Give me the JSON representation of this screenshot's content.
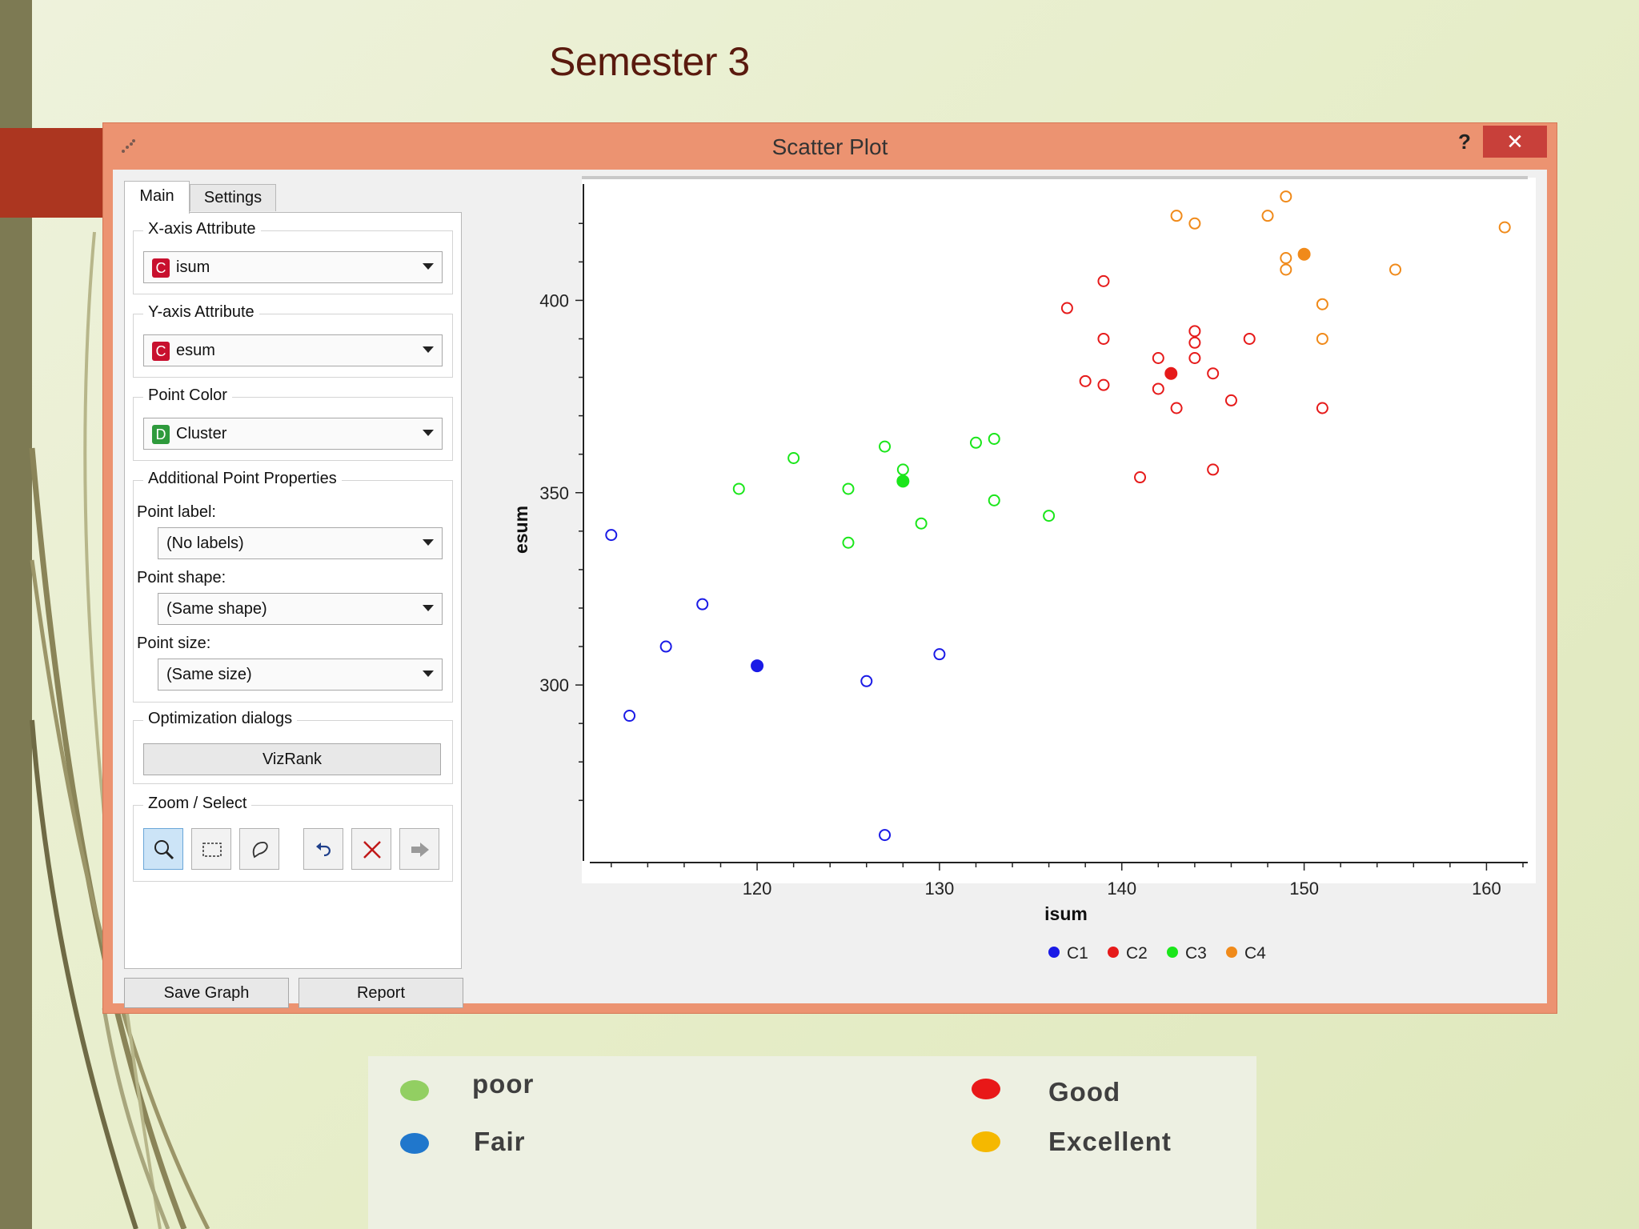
{
  "slide": {
    "title": "Semester 3"
  },
  "window": {
    "title": "Scatter Plot",
    "help_label": "?",
    "close_label": "✕"
  },
  "tabs": {
    "main": "Main",
    "settings": "Settings"
  },
  "x_axis_group": {
    "title": "X-axis Attribute",
    "value": "isum",
    "badge": "C"
  },
  "y_axis_group": {
    "title": "Y-axis Attribute",
    "value": "esum",
    "badge": "C"
  },
  "color_group": {
    "title": "Point Color",
    "value": "Cluster",
    "badge": "D"
  },
  "props_group": {
    "title": "Additional Point Properties",
    "label_caption": "Point label:",
    "label_value": "(No labels)",
    "shape_caption": "Point shape:",
    "shape_value": "(Same shape)",
    "size_caption": "Point size:",
    "size_value": "(Same size)"
  },
  "optimization_group": {
    "title": "Optimization dialogs",
    "vizrank_label": "VizRank"
  },
  "zoom_group": {
    "title": "Zoom / Select",
    "tools": [
      "zoom-icon",
      "rect-select-icon",
      "lasso-select-icon",
      "undo-icon",
      "clear-selection-icon",
      "send-data-icon"
    ]
  },
  "buttons": {
    "save_graph": "Save Graph",
    "report": "Report"
  },
  "colors": {
    "C1": "#1a1ae6",
    "C2": "#e61a1a",
    "C3": "#1ae61a",
    "C4": "#f08a1a",
    "legend_poor": "#92cf62",
    "legend_fair": "#2077cc",
    "legend_good": "#e81818",
    "legend_excellent": "#f5b800"
  },
  "chart_data": {
    "type": "scatter",
    "xlabel": "isum",
    "ylabel": "esum",
    "xlim": [
      111,
      162
    ],
    "ylim": [
      258,
      429
    ],
    "x_ticks": [
      120,
      130,
      140,
      150,
      160
    ],
    "y_ticks": [
      300,
      350,
      400
    ],
    "legend_position": "bottom-center",
    "series": [
      {
        "name": "C1",
        "color": "#1a1ae6",
        "points": [
          [
            112,
            339
          ],
          [
            113,
            292
          ],
          [
            115,
            310
          ],
          [
            117,
            321
          ],
          [
            120,
            305
          ],
          [
            126,
            301
          ],
          [
            127,
            261
          ],
          [
            130,
            308
          ]
        ],
        "filled": [
          [
            120,
            305
          ]
        ]
      },
      {
        "name": "C2",
        "color": "#e61a1a",
        "points": [
          [
            137,
            398
          ],
          [
            138,
            379
          ],
          [
            139,
            405
          ],
          [
            139,
            390
          ],
          [
            139,
            378
          ],
          [
            141,
            354
          ],
          [
            142,
            385
          ],
          [
            142,
            377
          ],
          [
            143,
            372
          ],
          [
            144,
            392
          ],
          [
            144,
            389
          ],
          [
            144,
            385
          ],
          [
            145,
            356
          ],
          [
            145,
            381
          ],
          [
            146,
            374
          ],
          [
            147,
            390
          ],
          [
            151,
            372
          ],
          [
            142.7,
            381
          ]
        ],
        "filled": [
          [
            142.7,
            381
          ]
        ]
      },
      {
        "name": "C3",
        "color": "#1ae61a",
        "points": [
          [
            119,
            351
          ],
          [
            122,
            359
          ],
          [
            125,
            351
          ],
          [
            125,
            337
          ],
          [
            127,
            362
          ],
          [
            128,
            356
          ],
          [
            128,
            353
          ],
          [
            129,
            342
          ],
          [
            132,
            363
          ],
          [
            133,
            364
          ],
          [
            133,
            348
          ],
          [
            136,
            344
          ]
        ],
        "filled": [
          [
            128,
            353
          ]
        ]
      },
      {
        "name": "C4",
        "color": "#f08a1a",
        "points": [
          [
            143,
            422
          ],
          [
            144,
            420
          ],
          [
            148,
            422
          ],
          [
            149,
            427
          ],
          [
            149,
            411
          ],
          [
            149,
            408
          ],
          [
            150,
            412
          ],
          [
            151,
            399
          ],
          [
            151,
            390
          ],
          [
            155,
            408
          ],
          [
            161,
            419
          ]
        ],
        "filled": [
          [
            150,
            412
          ]
        ]
      }
    ]
  },
  "slide_legend": {
    "items": [
      {
        "label": "poor",
        "color": "#92cf62"
      },
      {
        "label": "Fair",
        "color": "#2077cc"
      },
      {
        "label": "Good",
        "color": "#e81818"
      },
      {
        "label": "Excellent",
        "color": "#f5b800"
      }
    ]
  }
}
